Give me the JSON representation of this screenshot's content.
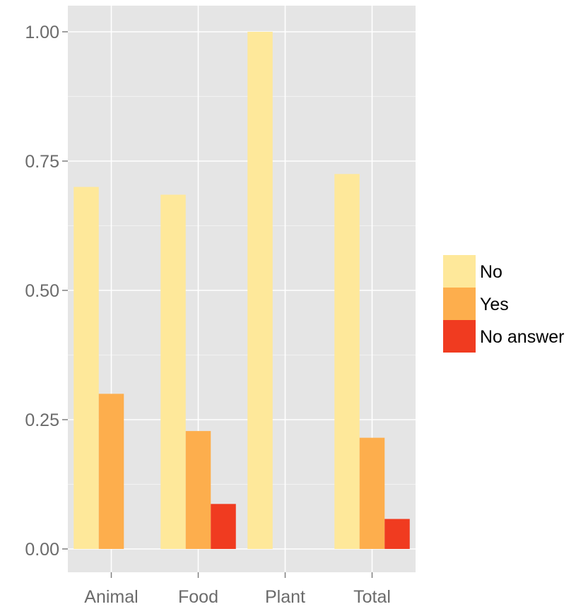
{
  "chart_data": {
    "type": "bar",
    "title": "",
    "xlabel": "",
    "ylabel": "",
    "categories": [
      "Animal",
      "Food",
      "Plant",
      "Total"
    ],
    "series": [
      {
        "name": "No",
        "color": "#FEE89A",
        "values": [
          0.7,
          0.685,
          1.0,
          0.725
        ]
      },
      {
        "name": "Yes",
        "color": "#FDAE4D",
        "values": [
          0.3,
          0.228,
          0.0,
          0.215
        ]
      },
      {
        "name": "No answer",
        "color": "#F03B20",
        "values": [
          0.0,
          0.087,
          0.0,
          0.058
        ]
      }
    ],
    "ylim": [
      0,
      1.05
    ],
    "yticks": [
      0.0,
      0.25,
      0.5,
      0.75,
      1.0
    ],
    "ytick_labels": [
      "0.00",
      "0.25",
      "0.50",
      "0.75",
      "1.00"
    ],
    "grid": true,
    "panel_background": "#E5E5E5",
    "grid_color": "#FFFFFF",
    "legend_position": "right"
  }
}
